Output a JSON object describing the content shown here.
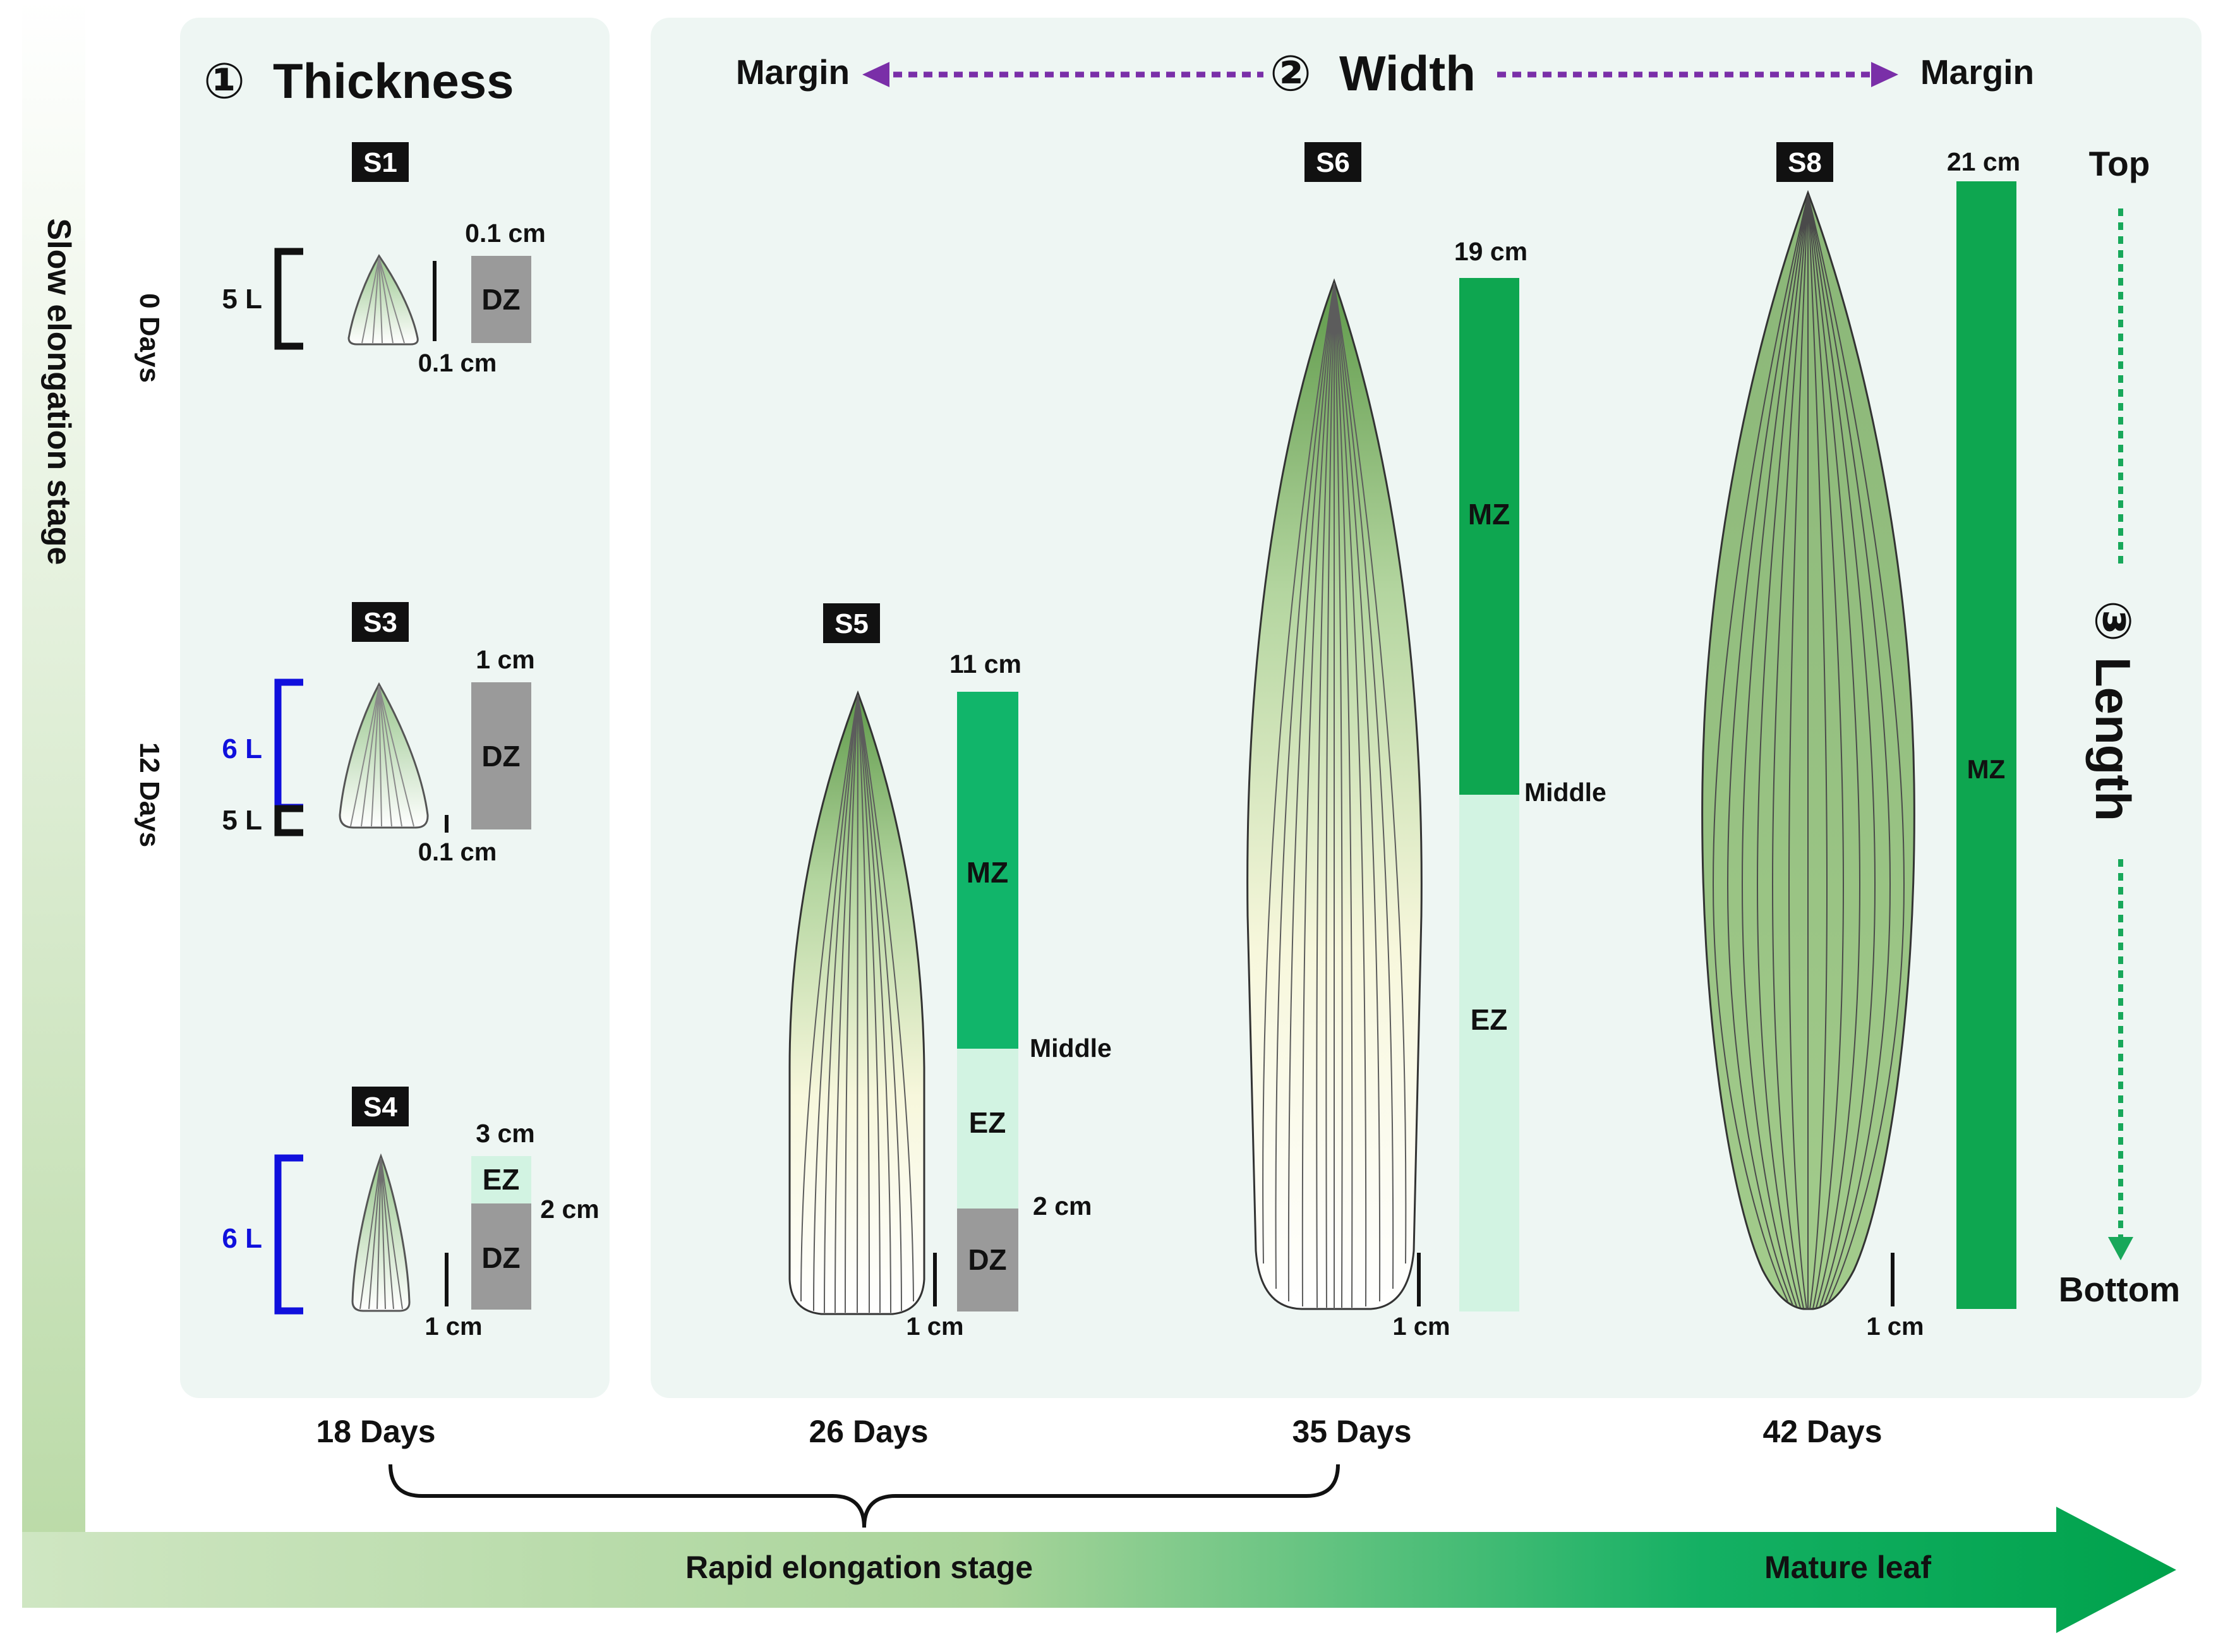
{
  "axes": {
    "vertical_stage": "Slow elongation stage",
    "horizontal_stage": "Rapid elongation stage",
    "end_label": "Mature leaf"
  },
  "panels": {
    "thickness": {
      "number": "①",
      "title": "Thickness"
    },
    "width": {
      "number": "②",
      "title": "Width",
      "margin_left": "Margin",
      "margin_right": "Margin"
    },
    "length": {
      "number": "③",
      "title": "Length",
      "top": "Top",
      "bottom": "Bottom"
    }
  },
  "days": {
    "d0": "0 Days",
    "d12": "12 Days",
    "d18": "18 Days",
    "d26": "26 Days",
    "d35": "35 Days",
    "d42": "42 Days"
  },
  "stages": [
    {
      "tag": "S1",
      "layers": [
        "5 L"
      ],
      "length": "0.1 cm",
      "scale": "0.1 cm",
      "zones": [
        "DZ"
      ]
    },
    {
      "tag": "S3",
      "layers": [
        "6 L",
        "5 L"
      ],
      "length": "1 cm",
      "scale": "0.1 cm",
      "zones": [
        "DZ"
      ]
    },
    {
      "tag": "S4",
      "layers": [
        "6 L"
      ],
      "length": "3 cm",
      "boundary": "2 cm",
      "scale": "1 cm",
      "zones": [
        "EZ",
        "DZ"
      ]
    },
    {
      "tag": "S5",
      "length": "11 cm",
      "middle": "Middle",
      "boundary": "2 cm",
      "scale": "1 cm",
      "zones": [
        "MZ",
        "EZ",
        "DZ"
      ]
    },
    {
      "tag": "S6",
      "length": "19 cm",
      "middle": "Middle",
      "scale": "1 cm",
      "zones": [
        "MZ",
        "EZ"
      ]
    },
    {
      "tag": "S8",
      "length": "21 cm",
      "scale": "1 cm",
      "zones": [
        "MZ"
      ]
    }
  ],
  "colors": {
    "DZ": "#9a9a9a",
    "EZ": "#d2f3e2",
    "MZ_light": "#11b56a",
    "MZ": "#0ea650",
    "layer_blue": "#1010dd",
    "arrow_purple": "#7a2fa8",
    "arrow_green": "#18a85a",
    "leaf_green": "#9fc98a",
    "panel_bg": "#eef6f3"
  }
}
